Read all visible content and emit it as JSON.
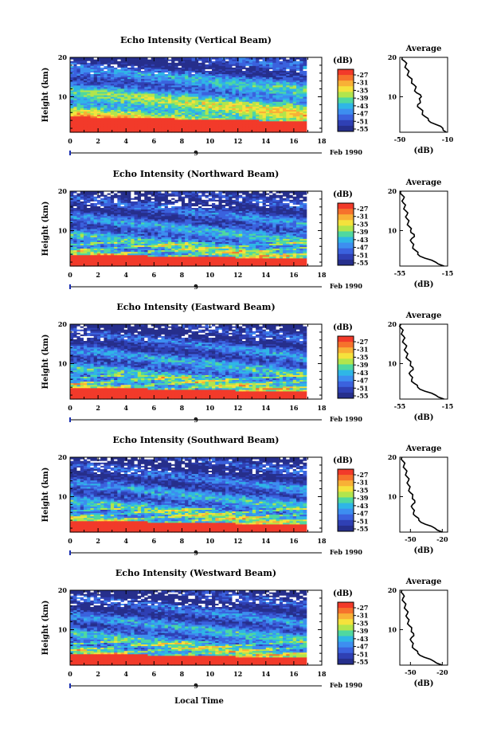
{
  "chart_data": [
    {
      "type": "heatmap",
      "title": "Echo Intensity (Vertical Beam)",
      "ylabel": "Height (km)",
      "xlim": [
        0,
        18
      ],
      "ylim": [
        1,
        20
      ],
      "xticks": [
        "0",
        "2",
        "4",
        "6",
        "8",
        "10",
        "12",
        "14",
        "16",
        "18"
      ],
      "yticks": [
        "10",
        "20"
      ],
      "data_x_end": 16.9,
      "day_marker": "9",
      "date_label": "Feb 1990",
      "colorbar": {
        "unit": "(dB)",
        "labels": [
          "-27",
          "-31",
          "-35",
          "-39",
          "-43",
          "-47",
          "-51",
          "-55"
        ]
      },
      "average_profile": {
        "title": "Average",
        "xlabel": "(dB)",
        "xticks": [
          "-50",
          "-10"
        ],
        "xlim": [
          -50,
          -10
        ],
        "height": [
          1,
          2,
          3,
          4,
          5,
          6,
          7,
          8,
          9,
          10,
          11,
          12,
          13,
          14,
          15,
          16,
          17,
          18,
          19,
          20
        ],
        "db": [
          -11,
          -14,
          -20,
          -26,
          -29,
          -31,
          -33,
          -35,
          -33,
          -32,
          -36,
          -37,
          -38,
          -40,
          -42,
          -43,
          -44,
          -45,
          -46,
          -48
        ]
      }
    },
    {
      "type": "heatmap",
      "title": "Echo Intensity (Northward Beam)",
      "ylabel": "Height (km)",
      "xlim": [
        0,
        18
      ],
      "ylim": [
        1,
        20
      ],
      "xticks": [
        "0",
        "2",
        "4",
        "6",
        "8",
        "10",
        "12",
        "14",
        "16",
        "18"
      ],
      "yticks": [
        "10",
        "20"
      ],
      "data_x_end": 16.9,
      "day_marker": "9",
      "date_label": "Feb 1990",
      "colorbar": {
        "unit": "(dB)",
        "labels": [
          "-27",
          "-31",
          "-35",
          "-39",
          "-43",
          "-47",
          "-51",
          "-55"
        ]
      },
      "average_profile": {
        "title": "Average",
        "xlabel": "(dB)",
        "xticks": [
          "-55",
          "-15"
        ],
        "xlim": [
          -55,
          -15
        ],
        "height": [
          1,
          2,
          3,
          4,
          5,
          6,
          7,
          8,
          9,
          10,
          11,
          12,
          13,
          14,
          15,
          16,
          17,
          18,
          19,
          20
        ],
        "db": [
          -18,
          -25,
          -34,
          -40,
          -42,
          -44,
          -45,
          -45,
          -43,
          -46,
          -47,
          -48,
          -49,
          -49,
          -50,
          -51,
          -52,
          -52,
          -53,
          -54
        ]
      }
    },
    {
      "type": "heatmap",
      "title": "Echo Intensity (Eastward Beam)",
      "ylabel": "Height (km)",
      "xlim": [
        0,
        18
      ],
      "ylim": [
        1,
        20
      ],
      "xticks": [
        "0",
        "2",
        "4",
        "6",
        "8",
        "10",
        "12",
        "14",
        "16",
        "18"
      ],
      "yticks": [
        "10",
        "20"
      ],
      "data_x_end": 16.9,
      "day_marker": "9",
      "date_label": "Feb 1990",
      "colorbar": {
        "unit": "(dB)",
        "labels": [
          "-27",
          "-31",
          "-35",
          "-39",
          "-43",
          "-47",
          "-51",
          "-55"
        ]
      },
      "average_profile": {
        "title": "Average",
        "xlabel": "(dB)",
        "xticks": [
          "-55",
          "-15"
        ],
        "xlim": [
          -55,
          -15
        ],
        "height": [
          1,
          2,
          3,
          4,
          5,
          6,
          7,
          8,
          9,
          10,
          11,
          12,
          13,
          14,
          15,
          16,
          17,
          18,
          19,
          20
        ],
        "db": [
          -18,
          -25,
          -34,
          -40,
          -43,
          -45,
          -46,
          -46,
          -44,
          -46,
          -48,
          -49,
          -50,
          -50,
          -51,
          -52,
          -52,
          -53,
          -54,
          -54
        ]
      }
    },
    {
      "type": "heatmap",
      "title": "Echo Intensity (Southward Beam)",
      "ylabel": "Height (km)",
      "xlim": [
        0,
        18
      ],
      "ylim": [
        1,
        20
      ],
      "xticks": [
        "0",
        "2",
        "4",
        "6",
        "8",
        "10",
        "12",
        "14",
        "16",
        "18"
      ],
      "yticks": [
        "10",
        "20"
      ],
      "data_x_end": 16.9,
      "day_marker": "9",
      "date_label": "Feb 1990",
      "colorbar": {
        "unit": "(dB)",
        "labels": [
          "-27",
          "-31",
          "-35",
          "-39",
          "-43",
          "-47",
          "-51",
          "-55"
        ]
      },
      "average_profile": {
        "title": "Average",
        "xlabel": "(dB)",
        "xticks": [
          "-50",
          "-20"
        ],
        "xlim": [
          -60,
          -15
        ],
        "height": [
          1,
          2,
          3,
          4,
          5,
          6,
          7,
          8,
          9,
          10,
          11,
          12,
          13,
          14,
          15,
          16,
          17,
          18,
          19,
          20
        ],
        "db": [
          -20,
          -27,
          -36,
          -42,
          -45,
          -47,
          -48,
          -48,
          -46,
          -48,
          -50,
          -51,
          -52,
          -52,
          -53,
          -54,
          -55,
          -56,
          -57,
          -58
        ]
      }
    },
    {
      "type": "heatmap",
      "title": "Echo Intensity (Westward Beam)",
      "ylabel": "Height (km)",
      "xlabel": "Local Time",
      "xlim": [
        0,
        18
      ],
      "ylim": [
        1,
        20
      ],
      "xticks": [
        "0",
        "2",
        "4",
        "6",
        "8",
        "10",
        "12",
        "14",
        "16",
        "18"
      ],
      "yticks": [
        "10",
        "20"
      ],
      "data_x_end": 16.9,
      "day_marker": "9",
      "date_label": "Feb 1990",
      "colorbar": {
        "unit": "(dB)",
        "labels": [
          "-27",
          "-31",
          "-35",
          "-39",
          "-43",
          "-47",
          "-51",
          "-55"
        ]
      },
      "average_profile": {
        "title": "Average",
        "xlabel": "(dB)",
        "xticks": [
          "-50",
          "-20"
        ],
        "xlim": [
          -60,
          -15
        ],
        "height": [
          1,
          2,
          3,
          4,
          5,
          6,
          7,
          8,
          9,
          10,
          11,
          12,
          13,
          14,
          15,
          16,
          17,
          18,
          19,
          20
        ],
        "db": [
          -20,
          -28,
          -37,
          -43,
          -46,
          -48,
          -49,
          -49,
          -47,
          -49,
          -51,
          -52,
          -53,
          -53,
          -54,
          -55,
          -56,
          -57,
          -57,
          -58
        ]
      }
    }
  ],
  "colors": {
    "scale": [
      "#f23a2a",
      "#f6722c",
      "#f8b136",
      "#f5e23c",
      "#b2e54c",
      "#4fd8a0",
      "#2fb6e6",
      "#3d8ef0",
      "#3b62de",
      "#2f40b4",
      "#262f8c"
    ]
  }
}
